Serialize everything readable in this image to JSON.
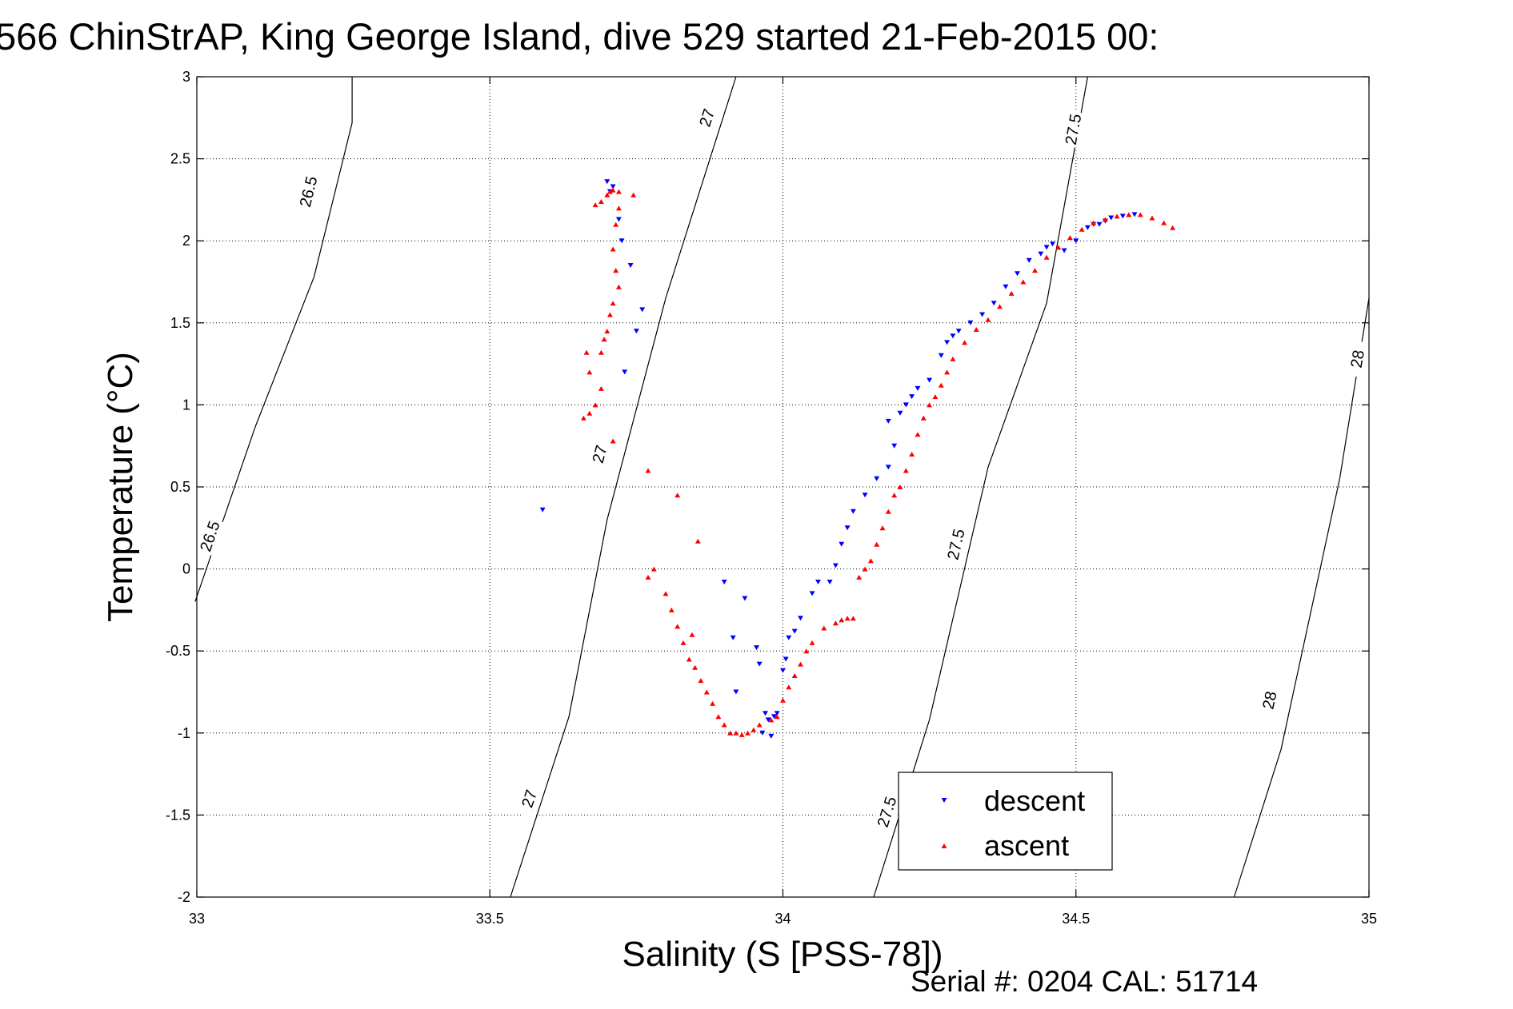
{
  "chart_data": {
    "type": "scatter",
    "title": "566 ChinStrAP, King George Island, dive 529 started 21-Feb-2015 00:",
    "xlabel": "Salinity (S [PSS-78])",
    "ylabel": "Temperature (°C)",
    "xlim": [
      33,
      35
    ],
    "ylim": [
      -2,
      3
    ],
    "grid": true,
    "legend_position": "lower-right",
    "x_ticks": [
      "33",
      "33.5",
      "34",
      "34.5",
      "35"
    ],
    "y_ticks": [
      "3",
      "2.5",
      "2",
      "1.5",
      "1",
      "0.5",
      "0",
      "-0.5",
      "-1",
      "-1.5",
      "-2"
    ],
    "footer": "Serial #: 0204  CAL: 51714",
    "density_contours": [
      {
        "label": "26.5",
        "points": [
          [
            32.997,
            -0.2
          ],
          [
            33.1,
            0.87
          ],
          [
            33.2,
            1.78
          ],
          [
            33.265,
            2.72
          ],
          [
            33.265,
            3.0
          ]
        ],
        "label_positions": [
          [
            33.022,
            0.2
          ],
          [
            33.19,
            2.3
          ]
        ]
      },
      {
        "label": "27",
        "points": [
          [
            33.535,
            -2.0
          ],
          [
            33.635,
            -0.9
          ],
          [
            33.7,
            0.3
          ],
          [
            33.8,
            1.65
          ],
          [
            33.92,
            3.0
          ]
        ],
        "label_positions": [
          [
            33.567,
            -1.4
          ],
          [
            33.687,
            0.7
          ],
          [
            33.87,
            2.75
          ]
        ]
      },
      {
        "label": "27.5",
        "points": [
          [
            34.155,
            -2.0
          ],
          [
            34.25,
            -0.92
          ],
          [
            34.35,
            0.62
          ],
          [
            34.45,
            1.62
          ],
          [
            34.52,
            3.0
          ]
        ],
        "label_positions": [
          [
            34.177,
            -1.48
          ],
          [
            34.295,
            0.15
          ],
          [
            34.495,
            2.68
          ]
        ]
      },
      {
        "label": "28",
        "points": [
          [
            34.77,
            -2.0
          ],
          [
            34.85,
            -1.1
          ],
          [
            34.95,
            0.55
          ],
          [
            35.0,
            1.65
          ]
        ],
        "label_positions": [
          [
            34.83,
            -0.8
          ],
          [
            34.98,
            1.28
          ]
        ]
      }
    ],
    "series": [
      {
        "name": "descent",
        "color": "#0000ff",
        "marker": "triangle-down",
        "points": [
          [
            33.59,
            0.36
          ],
          [
            33.7,
            2.36
          ],
          [
            33.71,
            2.33
          ],
          [
            33.705,
            2.3
          ],
          [
            33.72,
            2.13
          ],
          [
            33.725,
            2.0
          ],
          [
            33.74,
            1.85
          ],
          [
            33.76,
            1.58
          ],
          [
            33.75,
            1.45
          ],
          [
            33.73,
            1.2
          ],
          [
            33.9,
            -0.08
          ],
          [
            33.915,
            -0.42
          ],
          [
            33.92,
            -0.75
          ],
          [
            33.935,
            -0.18
          ],
          [
            33.955,
            -0.48
          ],
          [
            33.96,
            -0.58
          ],
          [
            33.97,
            -0.88
          ],
          [
            33.975,
            -0.92
          ],
          [
            33.98,
            -1.02
          ],
          [
            33.965,
            -1.0
          ],
          [
            33.985,
            -0.9
          ],
          [
            33.99,
            -0.88
          ],
          [
            34.0,
            -0.62
          ],
          [
            34.005,
            -0.55
          ],
          [
            34.01,
            -0.42
          ],
          [
            34.02,
            -0.38
          ],
          [
            34.03,
            -0.3
          ],
          [
            34.05,
            -0.15
          ],
          [
            34.06,
            -0.08
          ],
          [
            34.08,
            -0.08
          ],
          [
            34.09,
            0.02
          ],
          [
            34.1,
            0.15
          ],
          [
            34.11,
            0.25
          ],
          [
            34.12,
            0.35
          ],
          [
            34.14,
            0.45
          ],
          [
            34.16,
            0.55
          ],
          [
            34.18,
            0.62
          ],
          [
            34.19,
            0.75
          ],
          [
            34.18,
            0.9
          ],
          [
            34.2,
            0.95
          ],
          [
            34.21,
            1.0
          ],
          [
            34.22,
            1.05
          ],
          [
            34.23,
            1.1
          ],
          [
            34.25,
            1.15
          ],
          [
            34.27,
            1.3
          ],
          [
            34.28,
            1.38
          ],
          [
            34.29,
            1.42
          ],
          [
            34.3,
            1.45
          ],
          [
            34.32,
            1.5
          ],
          [
            34.34,
            1.55
          ],
          [
            34.36,
            1.62
          ],
          [
            34.38,
            1.72
          ],
          [
            34.4,
            1.8
          ],
          [
            34.42,
            1.88
          ],
          [
            34.44,
            1.92
          ],
          [
            34.46,
            1.98
          ],
          [
            34.45,
            1.96
          ],
          [
            34.48,
            1.94
          ],
          [
            34.5,
            2.0
          ],
          [
            34.52,
            2.08
          ],
          [
            34.53,
            2.1
          ],
          [
            34.54,
            2.1
          ],
          [
            34.55,
            2.12
          ],
          [
            34.56,
            2.14
          ],
          [
            34.58,
            2.15
          ],
          [
            34.6,
            2.16
          ]
        ]
      },
      {
        "name": "ascent",
        "color": "#ff0000",
        "marker": "triangle-up",
        "points": [
          [
            33.68,
            2.22
          ],
          [
            33.69,
            2.24
          ],
          [
            33.7,
            2.28
          ],
          [
            33.705,
            2.3
          ],
          [
            33.71,
            2.31
          ],
          [
            33.72,
            2.3
          ],
          [
            33.745,
            2.28
          ],
          [
            33.72,
            2.2
          ],
          [
            33.715,
            2.1
          ],
          [
            33.71,
            1.95
          ],
          [
            33.715,
            1.82
          ],
          [
            33.72,
            1.72
          ],
          [
            33.71,
            1.62
          ],
          [
            33.705,
            1.55
          ],
          [
            33.7,
            1.45
          ],
          [
            33.695,
            1.4
          ],
          [
            33.69,
            1.32
          ],
          [
            33.665,
            1.32
          ],
          [
            33.67,
            1.2
          ],
          [
            33.69,
            1.1
          ],
          [
            33.68,
            1.0
          ],
          [
            33.67,
            0.95
          ],
          [
            33.66,
            0.92
          ],
          [
            33.71,
            0.78
          ],
          [
            33.77,
            0.6
          ],
          [
            33.82,
            0.45
          ],
          [
            33.855,
            0.17
          ],
          [
            33.78,
            0.0
          ],
          [
            33.77,
            -0.05
          ],
          [
            33.8,
            -0.15
          ],
          [
            33.81,
            -0.25
          ],
          [
            33.82,
            -0.35
          ],
          [
            33.83,
            -0.45
          ],
          [
            33.84,
            -0.55
          ],
          [
            33.845,
            -0.4
          ],
          [
            33.85,
            -0.6
          ],
          [
            33.86,
            -0.68
          ],
          [
            33.87,
            -0.75
          ],
          [
            33.88,
            -0.82
          ],
          [
            33.89,
            -0.9
          ],
          [
            33.9,
            -0.95
          ],
          [
            33.91,
            -1.0
          ],
          [
            33.92,
            -1.0
          ],
          [
            33.93,
            -1.01
          ],
          [
            33.94,
            -1.0
          ],
          [
            33.95,
            -0.98
          ],
          [
            33.96,
            -0.95
          ],
          [
            33.98,
            -0.92
          ],
          [
            33.99,
            -0.9
          ],
          [
            34.0,
            -0.8
          ],
          [
            34.01,
            -0.72
          ],
          [
            34.02,
            -0.65
          ],
          [
            34.03,
            -0.58
          ],
          [
            34.04,
            -0.5
          ],
          [
            34.05,
            -0.45
          ],
          [
            34.07,
            -0.36
          ],
          [
            34.09,
            -0.33
          ],
          [
            34.1,
            -0.31
          ],
          [
            34.11,
            -0.3
          ],
          [
            34.12,
            -0.3
          ],
          [
            34.13,
            -0.05
          ],
          [
            34.14,
            0.0
          ],
          [
            34.15,
            0.05
          ],
          [
            34.16,
            0.15
          ],
          [
            34.17,
            0.25
          ],
          [
            34.18,
            0.35
          ],
          [
            34.19,
            0.45
          ],
          [
            34.2,
            0.5
          ],
          [
            34.21,
            0.6
          ],
          [
            34.22,
            0.7
          ],
          [
            34.23,
            0.82
          ],
          [
            34.24,
            0.92
          ],
          [
            34.25,
            1.0
          ],
          [
            34.26,
            1.05
          ],
          [
            34.27,
            1.12
          ],
          [
            34.28,
            1.2
          ],
          [
            34.29,
            1.28
          ],
          [
            34.31,
            1.38
          ],
          [
            34.33,
            1.46
          ],
          [
            34.35,
            1.52
          ],
          [
            34.37,
            1.6
          ],
          [
            34.39,
            1.68
          ],
          [
            34.41,
            1.75
          ],
          [
            34.43,
            1.82
          ],
          [
            34.45,
            1.9
          ],
          [
            34.47,
            1.96
          ],
          [
            34.49,
            2.02
          ],
          [
            34.51,
            2.07
          ],
          [
            34.53,
            2.11
          ],
          [
            34.55,
            2.13
          ],
          [
            34.57,
            2.15
          ],
          [
            34.59,
            2.16
          ],
          [
            34.61,
            2.16
          ],
          [
            34.63,
            2.14
          ],
          [
            34.65,
            2.11
          ],
          [
            34.665,
            2.08
          ]
        ]
      }
    ]
  }
}
